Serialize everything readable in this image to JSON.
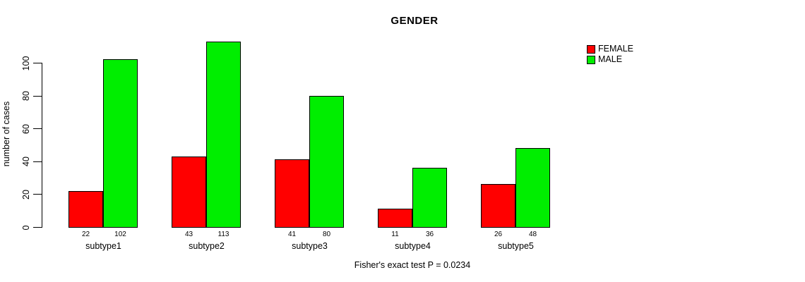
{
  "chart_data": {
    "type": "bar",
    "title": "GENDER",
    "xlabel": "",
    "ylabel": "number of cases",
    "categories": [
      "subtype1",
      "subtype2",
      "subtype3",
      "subtype4",
      "subtype5"
    ],
    "series": [
      {
        "name": "FEMALE",
        "color": "#ff0000",
        "values": [
          22,
          43,
          41,
          11,
          26
        ]
      },
      {
        "name": "MALE",
        "color": "#00ee00",
        "values": [
          102,
          113,
          80,
          36,
          48
        ]
      }
    ],
    "bar_value_labels": true,
    "ylim": [
      0,
      100
    ],
    "yticks": [
      0,
      20,
      40,
      60,
      80,
      100
    ],
    "grid": false,
    "legend_position": "top-right",
    "caption": "Fisher's exact test P = 0.0234",
    "colors": {
      "axis": "#000000",
      "background": "#ffffff",
      "text": "#000000"
    }
  }
}
